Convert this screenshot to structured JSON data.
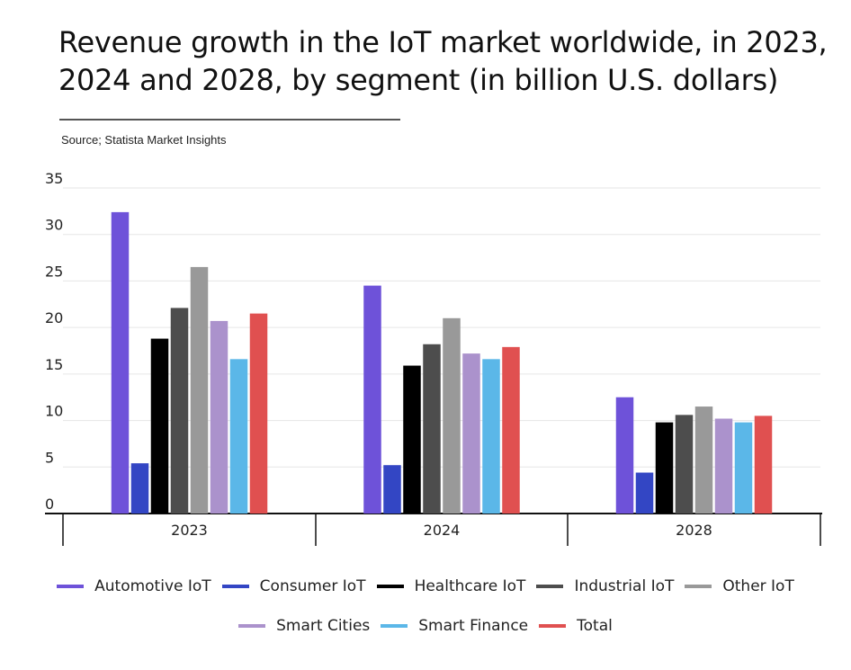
{
  "title": "Revenue growth in the IoT market worldwide, in 2023, 2024 and 2028, by segment (in billion U.S. dollars)",
  "source": "Source; Statista Market Insights",
  "chart_data": {
    "type": "bar",
    "categories": [
      "2023",
      "2024",
      "2028"
    ],
    "ylim": [
      0,
      35
    ],
    "yticks": [
      0,
      5,
      10,
      15,
      20,
      25,
      30,
      35
    ],
    "grid": true,
    "legend_position": "bottom",
    "series": [
      {
        "name": "Automotive IoT",
        "color": "#6e52d9",
        "values": [
          32.4,
          24.5,
          12.5
        ]
      },
      {
        "name": "Consumer IoT",
        "color": "#3346c4",
        "values": [
          5.4,
          5.2,
          4.4
        ]
      },
      {
        "name": "Healthcare IoT",
        "color": "#000000",
        "values": [
          18.8,
          15.9,
          9.8
        ]
      },
      {
        "name": "Industrial IoT",
        "color": "#4d4d4d",
        "values": [
          22.1,
          18.2,
          10.6
        ]
      },
      {
        "name": "Other IoT",
        "color": "#999999",
        "values": [
          26.5,
          21.0,
          11.5
        ]
      },
      {
        "name": "Smart Cities",
        "color": "#ab92cc",
        "values": [
          20.7,
          17.2,
          10.2
        ]
      },
      {
        "name": "Smart Finance",
        "color": "#5bb7e8",
        "values": [
          16.6,
          16.6,
          9.8
        ]
      },
      {
        "name": "Total",
        "color": "#e05050",
        "values": [
          21.5,
          17.9,
          10.5
        ]
      }
    ]
  }
}
